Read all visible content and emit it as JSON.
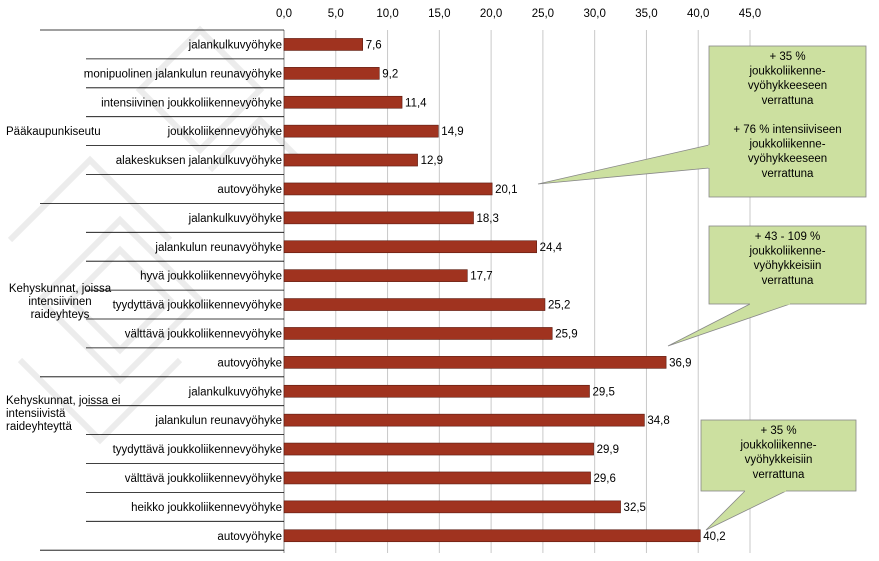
{
  "chart_data": {
    "type": "bar",
    "orientation": "horizontal",
    "title": "",
    "xlabel": "",
    "ylabel": "",
    "xlim": [
      0,
      45
    ],
    "ticks": [
      "0,0",
      "5,0",
      "10,0",
      "15,0",
      "20,0",
      "25,0",
      "30,0",
      "35,0",
      "40,0",
      "45,0"
    ],
    "grid": "vertical",
    "legend": "none",
    "bar_color": "#A0331F",
    "callout_color": "#CCE0A0",
    "groups": [
      {
        "label": "Pääkaupunkiseutu",
        "lines": [
          "Pääkaupunkiseutu"
        ],
        "start": 0,
        "end": 5
      },
      {
        "label": "Kehyskunnat, joissa intensiivinen raideyhteys",
        "lines": [
          "Kehyskunnat, joissa",
          "intensiivinen",
          "raideyhteys"
        ],
        "start": 6,
        "end": 11
      },
      {
        "label": "Kehyskunnat, joissa ei intensiivistä raideyhteyttä",
        "lines": [
          "Kehyskunnat, joissa ei",
          "intensiivistä",
          "raideyhteyttä"
        ],
        "start": 12,
        "end": 17
      }
    ],
    "categories": [
      "jalankulkuvyöhyke",
      "monipuolinen jalankulun reunavyöhyke",
      "intensiivinen joukkoliikennevyöhyke",
      "joukkoliikennevyöhyke",
      "alakeskuksen jalankulkuvyöhyke",
      "autovyöhyke",
      "jalankulkuvyöhyke",
      "jalankulun reunavyöhyke",
      "hyvä joukkoliikennevyöhyke",
      "tyydyttävä joukkoliikennevyöhyke",
      "välttävä joukkoliikennevyöhyke",
      "autovyöhyke",
      "jalankulkuvyöhyke",
      "jalankulun reunavyöhyke",
      "tyydyttävä joukkoliikennevyöhyke",
      "välttävä joukkoliikennevyöhyke",
      "heikko joukkoliikennevyöhyke",
      "autovyöhyke"
    ],
    "values": [
      7.6,
      9.2,
      11.4,
      14.9,
      12.9,
      20.1,
      18.3,
      24.4,
      17.7,
      25.2,
      25.9,
      36.9,
      29.5,
      34.8,
      29.9,
      29.6,
      32.5,
      40.2
    ],
    "value_labels": [
      "7,6",
      "9,2",
      "11,4",
      "14,9",
      "12,9",
      "20,1",
      "18,3",
      "24,4",
      "17,7",
      "25,2",
      "25,9",
      "36,9",
      "29,5",
      "34,8",
      "29,9",
      "29,6",
      "32,5",
      "40,2"
    ],
    "annotations": [
      {
        "target": 5,
        "lines": [
          "+ 35 %",
          "joukkoliikenne-",
          "vyöhykkeeseen",
          "verrattuna",
          "",
          "+ 76 % intensiiviseen",
          "joukkoliikenne-",
          "vyöhykkeeseen",
          "verrattuna"
        ]
      },
      {
        "target": 11,
        "lines": [
          "+ 43 - 109 %",
          "joukkoliikenne-",
          "vyöhykkeisiin",
          "verrattuna"
        ]
      },
      {
        "target": 17,
        "lines": [
          "+ 35 %",
          "joukkoliikenne-",
          "vyöhykkeisiin",
          "verrattuna"
        ]
      }
    ]
  }
}
